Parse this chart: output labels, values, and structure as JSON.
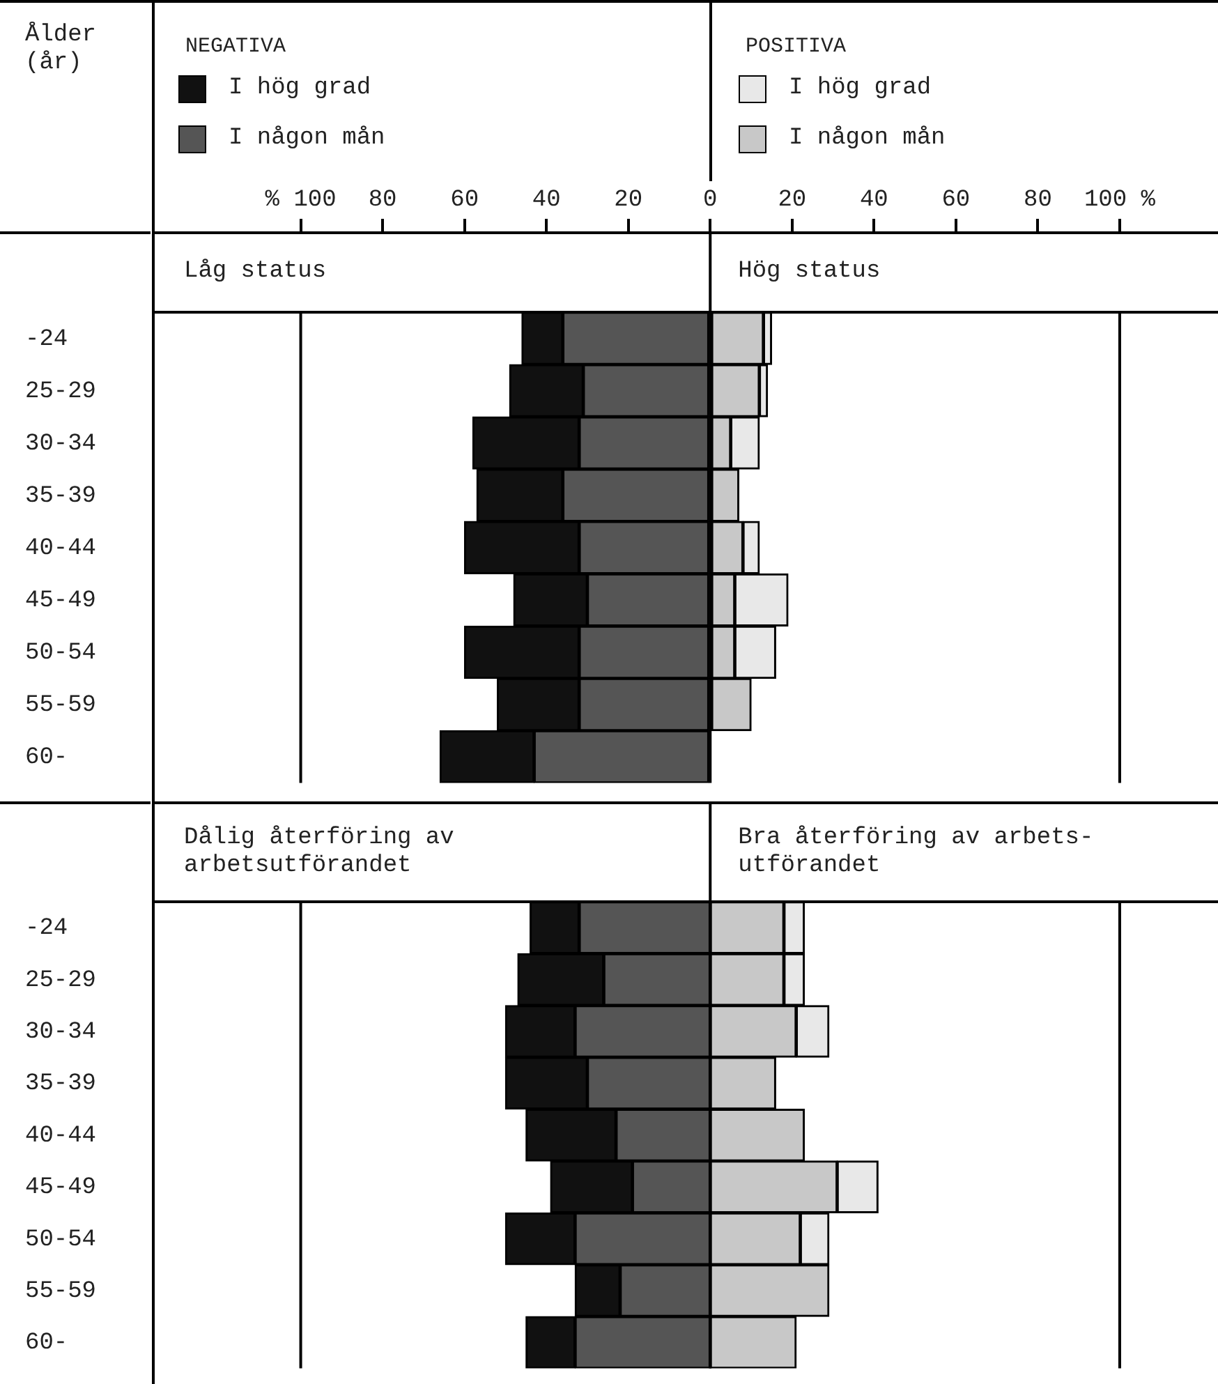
{
  "chart_data": [
    {
      "type": "bar",
      "orientation": "horizontal",
      "stacked": true,
      "title": "Låg status",
      "subtitle": "Hög status",
      "annotations": [
        "Ålder (år)",
        "NEGATIVA",
        "POSITIVA"
      ],
      "legend": "top",
      "categories": [
        "-24",
        "25-29",
        "30-34",
        "35-39",
        "40-44",
        "45-49",
        "50-54",
        "55-59",
        "60-"
      ],
      "xlim": [
        -136,
        124
      ],
      "xticks": [
        {
          "value": -100,
          "label": "% 100"
        },
        {
          "value": -80,
          "label": "80"
        },
        {
          "value": -60,
          "label": "60"
        },
        {
          "value": -40,
          "label": "40"
        },
        {
          "value": -20,
          "label": "20"
        },
        0,
        20,
        40,
        60,
        80,
        {
          "value": 100,
          "label": "100 %"
        }
      ],
      "ref_lines": [
        {
          "axis": "x",
          "value": -100
        },
        {
          "axis": "x",
          "value": 0
        },
        {
          "axis": "x",
          "value": 100
        }
      ],
      "series": [
        {
          "name": "I någon mån",
          "color": "#555555",
          "values": [
            -36,
            -31,
            -32,
            -36,
            -32,
            -30,
            -32,
            -32,
            -43
          ]
        },
        {
          "name": "I hög grad",
          "color": "#111111",
          "values": [
            -10,
            -18,
            -26,
            -21,
            -28,
            -18,
            -28,
            -20,
            -23
          ]
        },
        {
          "name": "I någon mån",
          "color": "#c8c8c8",
          "values": [
            13,
            12,
            5,
            7,
            8,
            6,
            6,
            10,
            null
          ]
        },
        {
          "name": "I hög grad",
          "color": "#e8e8e8",
          "values": [
            2,
            2,
            7,
            null,
            4,
            13,
            10,
            null,
            null
          ]
        }
      ]
    },
    {
      "type": "bar",
      "orientation": "horizontal",
      "stacked": true,
      "title": "Dålig återföring av\narbetsutförandet",
      "subtitle": "Bra återföring av arbets-\nutförandet",
      "tick_labels": "y",
      "categories": [
        "-24",
        "25-29",
        "30-34",
        "35-39",
        "40-44",
        "45-49",
        "50-54",
        "55-59",
        "60-"
      ],
      "xlim": [
        -136,
        124
      ],
      "ref_lines": [
        {
          "axis": "x",
          "value": -100
        },
        {
          "axis": "x",
          "value": 0
        },
        {
          "axis": "x",
          "value": 100
        }
      ],
      "series": [
        {
          "color": "#555555",
          "values": [
            -32,
            -26,
            -33,
            -30,
            -23,
            -19,
            -33,
            -22,
            -33
          ]
        },
        {
          "color": "#111111",
          "values": [
            -12,
            -21,
            -17,
            -20,
            -22,
            -20,
            -17,
            -11,
            -12
          ]
        },
        {
          "color": "#c8c8c8",
          "values": [
            18,
            18,
            21,
            16,
            23,
            31,
            22,
            29,
            21
          ]
        },
        {
          "color": "#e8e8e8",
          "values": [
            5,
            5,
            8,
            null,
            null,
            10,
            7,
            null,
            null
          ]
        }
      ]
    }
  ]
}
